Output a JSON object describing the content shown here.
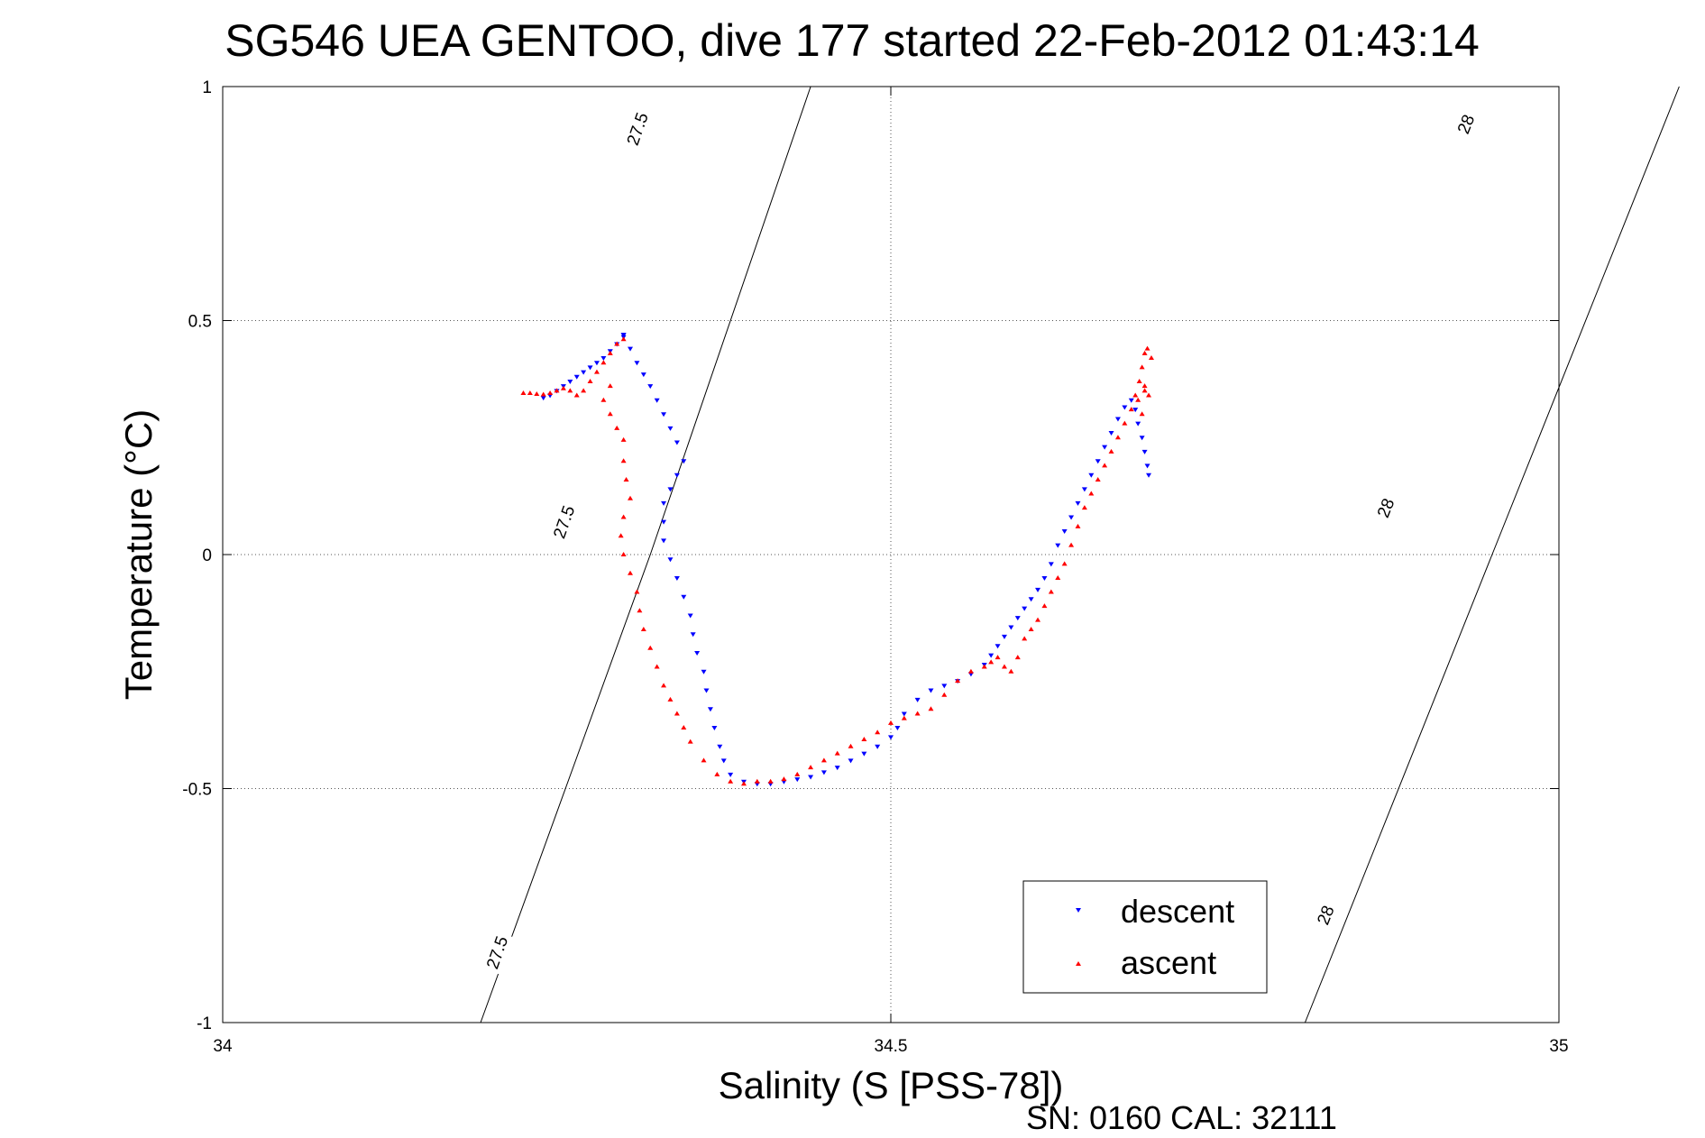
{
  "chart_data": {
    "type": "scatter",
    "title": "SG546 UEA GENTOO, dive 177 started 22-Feb-2012 01:43:14",
    "xlabel": "Salinity (S [PSS-78])",
    "ylabel": "Temperature (°C)",
    "xlim": [
      34,
      35
    ],
    "ylim": [
      -1,
      1
    ],
    "x_ticks": [
      "34",
      "34.5",
      "35"
    ],
    "y_ticks": [
      "1",
      "0.5",
      "0",
      "-0.5",
      "-1"
    ],
    "x_tick_values": [
      34,
      34.5,
      35
    ],
    "y_tick_values": [
      1,
      0.5,
      0,
      -0.5,
      -1
    ],
    "grid": true,
    "legend_position": "bottom-right",
    "footnote": "SN: 0160  CAL: 32111",
    "isopycnals": [
      {
        "label": "27.5",
        "points": [
          [
            34.193,
            -1.0
          ],
          [
            34.32,
            0.0
          ],
          [
            34.44,
            1.0
          ]
        ],
        "label_positions": [
          [
            34.205,
            -0.85
          ],
          [
            34.255,
            0.07
          ],
          [
            34.31,
            0.91
          ]
        ]
      },
      {
        "label": "28",
        "points": [
          [
            34.81,
            -1.0
          ],
          [
            34.95,
            0.0
          ],
          [
            35.09,
            1.0
          ]
        ],
        "label_positions": [
          [
            34.825,
            -0.77
          ],
          [
            34.87,
            0.1
          ],
          [
            34.93,
            0.92
          ]
        ]
      }
    ],
    "series": [
      {
        "name": "descent",
        "color": "#0000ff",
        "marker": "triangle-down",
        "points": [
          [
            34.24,
            0.335
          ],
          [
            34.245,
            0.34
          ],
          [
            34.25,
            0.35
          ],
          [
            34.255,
            0.36
          ],
          [
            34.26,
            0.37
          ],
          [
            34.265,
            0.38
          ],
          [
            34.27,
            0.39
          ],
          [
            34.275,
            0.4
          ],
          [
            34.28,
            0.41
          ],
          [
            34.285,
            0.42
          ],
          [
            34.29,
            0.435
          ],
          [
            34.295,
            0.45
          ],
          [
            34.3,
            0.465
          ],
          [
            34.3,
            0.47
          ],
          [
            34.3,
            0.47
          ],
          [
            34.305,
            0.44
          ],
          [
            34.31,
            0.41
          ],
          [
            34.315,
            0.385
          ],
          [
            34.32,
            0.36
          ],
          [
            34.325,
            0.33
          ],
          [
            34.33,
            0.3
          ],
          [
            34.335,
            0.27
          ],
          [
            34.34,
            0.24
          ],
          [
            34.345,
            0.2
          ],
          [
            34.34,
            0.17
          ],
          [
            34.335,
            0.14
          ],
          [
            34.33,
            0.11
          ],
          [
            34.33,
            0.07
          ],
          [
            34.33,
            0.03
          ],
          [
            34.335,
            -0.01
          ],
          [
            34.34,
            -0.05
          ],
          [
            34.345,
            -0.09
          ],
          [
            34.35,
            -0.13
          ],
          [
            34.352,
            -0.17
          ],
          [
            34.355,
            -0.21
          ],
          [
            34.36,
            -0.25
          ],
          [
            34.362,
            -0.29
          ],
          [
            34.365,
            -0.33
          ],
          [
            34.368,
            -0.37
          ],
          [
            34.372,
            -0.41
          ],
          [
            34.375,
            -0.44
          ],
          [
            34.38,
            -0.47
          ],
          [
            34.39,
            -0.485
          ],
          [
            34.4,
            -0.49
          ],
          [
            34.41,
            -0.49
          ],
          [
            34.42,
            -0.485
          ],
          [
            34.43,
            -0.48
          ],
          [
            34.44,
            -0.475
          ],
          [
            34.45,
            -0.465
          ],
          [
            34.46,
            -0.455
          ],
          [
            34.47,
            -0.44
          ],
          [
            34.48,
            -0.425
          ],
          [
            34.49,
            -0.41
          ],
          [
            34.5,
            -0.39
          ],
          [
            34.505,
            -0.37
          ],
          [
            34.51,
            -0.34
          ],
          [
            34.52,
            -0.31
          ],
          [
            34.53,
            -0.29
          ],
          [
            34.54,
            -0.28
          ],
          [
            34.55,
            -0.27
          ],
          [
            34.56,
            -0.255
          ],
          [
            34.57,
            -0.235
          ],
          [
            34.575,
            -0.215
          ],
          [
            34.58,
            -0.195
          ],
          [
            34.585,
            -0.175
          ],
          [
            34.59,
            -0.155
          ],
          [
            34.595,
            -0.135
          ],
          [
            34.6,
            -0.115
          ],
          [
            34.605,
            -0.095
          ],
          [
            34.61,
            -0.075
          ],
          [
            34.615,
            -0.05
          ],
          [
            34.62,
            -0.02
          ],
          [
            34.625,
            0.02
          ],
          [
            34.63,
            0.05
          ],
          [
            34.635,
            0.08
          ],
          [
            34.64,
            0.11
          ],
          [
            34.645,
            0.14
          ],
          [
            34.65,
            0.17
          ],
          [
            34.655,
            0.2
          ],
          [
            34.66,
            0.23
          ],
          [
            34.665,
            0.26
          ],
          [
            34.67,
            0.29
          ],
          [
            34.675,
            0.315
          ],
          [
            34.68,
            0.33
          ],
          [
            34.683,
            0.31
          ],
          [
            34.685,
            0.28
          ],
          [
            34.688,
            0.25
          ],
          [
            34.69,
            0.22
          ],
          [
            34.692,
            0.19
          ],
          [
            34.693,
            0.17
          ]
        ]
      },
      {
        "name": "ascent",
        "color": "#ff0000",
        "marker": "triangle-up",
        "points": [
          [
            34.225,
            0.345
          ],
          [
            34.23,
            0.345
          ],
          [
            34.235,
            0.343
          ],
          [
            34.24,
            0.342
          ],
          [
            34.245,
            0.345
          ],
          [
            34.25,
            0.35
          ],
          [
            34.255,
            0.355
          ],
          [
            34.26,
            0.35
          ],
          [
            34.265,
            0.34
          ],
          [
            34.27,
            0.35
          ],
          [
            34.275,
            0.37
          ],
          [
            34.28,
            0.39
          ],
          [
            34.285,
            0.41
          ],
          [
            34.29,
            0.43
          ],
          [
            34.295,
            0.45
          ],
          [
            34.3,
            0.46
          ],
          [
            34.29,
            0.36
          ],
          [
            34.285,
            0.33
          ],
          [
            34.29,
            0.3
          ],
          [
            34.295,
            0.27
          ],
          [
            34.3,
            0.245
          ],
          [
            34.3,
            0.2
          ],
          [
            34.302,
            0.16
          ],
          [
            34.305,
            0.12
          ],
          [
            34.3,
            0.08
          ],
          [
            34.298,
            0.04
          ],
          [
            34.3,
            0.0
          ],
          [
            34.305,
            -0.04
          ],
          [
            34.31,
            -0.08
          ],
          [
            34.312,
            -0.12
          ],
          [
            34.315,
            -0.16
          ],
          [
            34.32,
            -0.2
          ],
          [
            34.325,
            -0.24
          ],
          [
            34.33,
            -0.28
          ],
          [
            34.335,
            -0.31
          ],
          [
            34.34,
            -0.34
          ],
          [
            34.345,
            -0.37
          ],
          [
            34.35,
            -0.4
          ],
          [
            34.36,
            -0.44
          ],
          [
            34.37,
            -0.47
          ],
          [
            34.38,
            -0.485
          ],
          [
            34.39,
            -0.49
          ],
          [
            34.4,
            -0.485
          ],
          [
            34.41,
            -0.485
          ],
          [
            34.42,
            -0.48
          ],
          [
            34.43,
            -0.47
          ],
          [
            34.44,
            -0.455
          ],
          [
            34.45,
            -0.44
          ],
          [
            34.46,
            -0.425
          ],
          [
            34.47,
            -0.41
          ],
          [
            34.48,
            -0.395
          ],
          [
            34.49,
            -0.38
          ],
          [
            34.5,
            -0.36
          ],
          [
            34.51,
            -0.35
          ],
          [
            34.52,
            -0.34
          ],
          [
            34.53,
            -0.33
          ],
          [
            34.54,
            -0.3
          ],
          [
            34.55,
            -0.27
          ],
          [
            34.56,
            -0.25
          ],
          [
            34.57,
            -0.24
          ],
          [
            34.575,
            -0.23
          ],
          [
            34.58,
            -0.22
          ],
          [
            34.585,
            -0.24
          ],
          [
            34.59,
            -0.25
          ],
          [
            34.595,
            -0.22
          ],
          [
            34.6,
            -0.18
          ],
          [
            34.605,
            -0.16
          ],
          [
            34.61,
            -0.14
          ],
          [
            34.615,
            -0.11
          ],
          [
            34.62,
            -0.08
          ],
          [
            34.625,
            -0.05
          ],
          [
            34.63,
            -0.02
          ],
          [
            34.635,
            0.02
          ],
          [
            34.64,
            0.06
          ],
          [
            34.645,
            0.1
          ],
          [
            34.65,
            0.13
          ],
          [
            34.655,
            0.16
          ],
          [
            34.66,
            0.19
          ],
          [
            34.665,
            0.22
          ],
          [
            34.67,
            0.25
          ],
          [
            34.675,
            0.28
          ],
          [
            34.68,
            0.31
          ],
          [
            34.683,
            0.34
          ],
          [
            34.686,
            0.37
          ],
          [
            34.688,
            0.4
          ],
          [
            34.69,
            0.43
          ],
          [
            34.692,
            0.44
          ],
          [
            34.695,
            0.42
          ],
          [
            34.69,
            0.36
          ],
          [
            34.693,
            0.34
          ],
          [
            34.688,
            0.3
          ],
          [
            34.685,
            0.33
          ],
          [
            34.69,
            0.35
          ]
        ]
      }
    ]
  }
}
